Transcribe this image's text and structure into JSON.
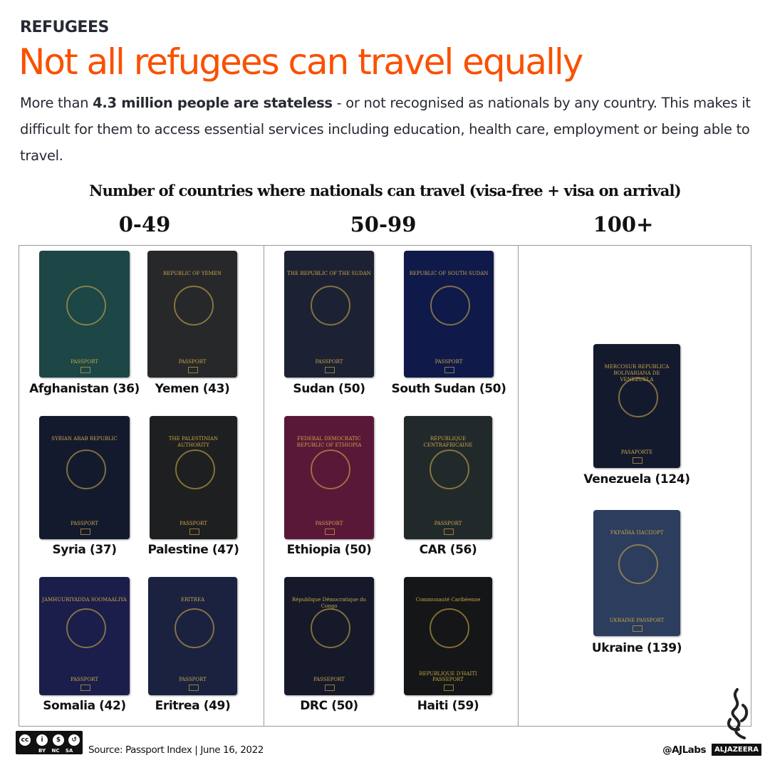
{
  "header": {
    "kicker": "REFUGEES",
    "title": "Not all refugees can travel equally",
    "intro_pre": "More than ",
    "intro_bold": "4.3 million people are stateless",
    "intro_post": " - or not recognised as nationals by any country. This makes it difficult for them to access essential services including education, health care, employment or being able to travel."
  },
  "subheading": "Number of countries where nationals can travel (visa-free + visa on arrival)",
  "groups": [
    {
      "label": "0-49",
      "passports": [
        {
          "country": "Afghanistan (36)",
          "color": "#1d4646",
          "cover": "",
          "bottom": "PASSPORT"
        },
        {
          "country": "Yemen (43)",
          "color": "#26282a",
          "cover": "REPUBLIC OF YEMEN",
          "bottom": "PASSPORT"
        },
        {
          "country": "Syria (37)",
          "color": "#141a2e",
          "cover": "SYRIAN ARAB REPUBLIC",
          "bottom": "PASSPORT"
        },
        {
          "country": "Palestine (47)",
          "color": "#1e1f20",
          "cover": "THE PALESTINIAN AUTHORITY",
          "bottom": "PASSPORT"
        },
        {
          "country": "Somalia (42)",
          "color": "#1b1e4a",
          "cover": "JAMHUURIYADDA SOOMAALIYA",
          "bottom": "PASSPORT"
        },
        {
          "country": "Eritrea (49)",
          "color": "#1a2240",
          "cover": "ERITREA",
          "bottom": "PASSPORT"
        }
      ]
    },
    {
      "label": "50-99",
      "passports": [
        {
          "country": "Sudan (50)",
          "color": "#1c2233",
          "cover": "THE REPUBLIC OF THE SUDAN",
          "bottom": "PASSPORT"
        },
        {
          "country": "South Sudan (50)",
          "color": "#0f1a4a",
          "cover": "REPUBLIC OF SOUTH SUDAN",
          "bottom": "PASSPORT"
        },
        {
          "country": "Ethiopia (50)",
          "color": "#5a1838",
          "cover": "FEDERAL DEMOCRATIC REPUBLIC OF ETHIOPIA",
          "bottom": "PASSPORT"
        },
        {
          "country": "CAR (56)",
          "color": "#22292b",
          "cover": "RÉPUBLIQUE CENTRAFRICAINE",
          "bottom": "PASSPORT"
        },
        {
          "country": "DRC (50)",
          "color": "#15192a",
          "cover": "République Démocratique du Congo",
          "bottom": "PASSEPORT"
        },
        {
          "country": "Haiti (59)",
          "color": "#151618",
          "cover": "Communauté Caribéenne",
          "bottom": "REPUBLIQUE D'HAITI PASSEPORT"
        }
      ]
    },
    {
      "label": "100+",
      "passports": [
        {
          "country": "Venezuela (124)",
          "color": "#141a2e",
          "cover": "MERCOSUR REPUBLICA BOLIVARIANA DE VENEZUELA",
          "bottom": "PASAPORTE"
        },
        {
          "country": "Ukraine (139)",
          "color": "#2c3d5e",
          "cover": "УКРАЇНА ПАСПОРТ",
          "bottom": "UKRAINE PASSPORT"
        }
      ]
    }
  ],
  "footer": {
    "license": "BY NC SA",
    "source": "Source: Passport Index | June 16, 2022",
    "handle": "@AJLabs",
    "logo": "ALJAZEERA"
  }
}
